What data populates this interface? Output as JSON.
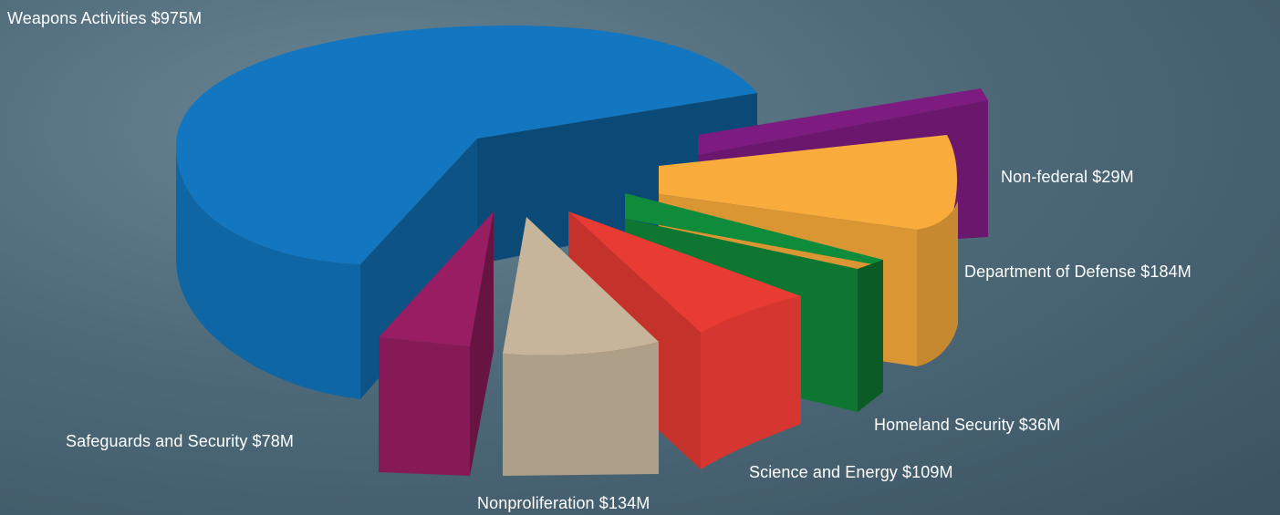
{
  "chart_data": {
    "type": "pie",
    "style": "3d-exploded",
    "categories": [
      "Weapons Activities",
      "Non-federal",
      "Department of Defense",
      "Homeland Security",
      "Science and Energy",
      "Nonproliferation",
      "Safeguards and Security"
    ],
    "values": [
      975,
      29,
      184,
      36,
      109,
      134,
      78
    ],
    "labels": [
      "Weapons Activities $975M",
      "Non-federal $29M",
      "Department of Defense $184M",
      "Homeland Security $36M",
      "Science and Energy $109M",
      "Nonproliferation $134M",
      "Safeguards and Security $78M"
    ],
    "colors": [
      "#1277c0",
      "#7e1b80",
      "#f9ab3b",
      "#0f8c3b",
      "#e83b33",
      "#c6b59a",
      "#981d62"
    ]
  }
}
